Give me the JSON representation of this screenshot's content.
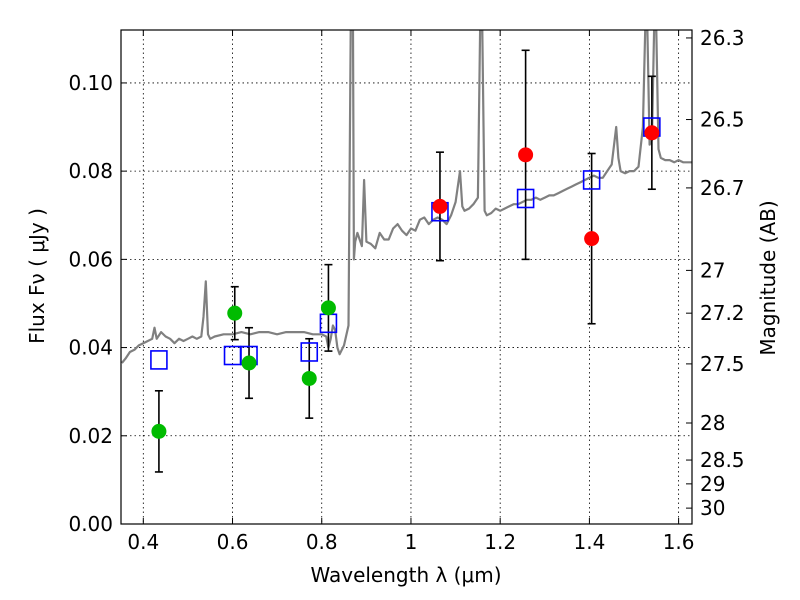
{
  "chart_data": {
    "type": "scatter",
    "xlabel": "Wavelength  λ (μm)",
    "ylabel": "Flux  Fν  ( μJy )",
    "ylabel_right": "Magnitude (AB)",
    "xlim": [
      0.35,
      1.63
    ],
    "ylim": [
      0.0,
      0.112
    ],
    "grid": true,
    "x_ticks": [
      {
        "value": 0.4,
        "label": "0.4"
      },
      {
        "value": 0.6,
        "label": "0.6"
      },
      {
        "value": 0.8,
        "label": "0.8"
      },
      {
        "value": 1.0,
        "label": "1"
      },
      {
        "value": 1.2,
        "label": "1.2"
      },
      {
        "value": 1.4,
        "label": "1.4"
      },
      {
        "value": 1.6,
        "label": "1.6"
      }
    ],
    "y_ticks": [
      {
        "value": 0.0,
        "label": "0.00"
      },
      {
        "value": 0.02,
        "label": "0.02"
      },
      {
        "value": 0.04,
        "label": "0.04"
      },
      {
        "value": 0.06,
        "label": "0.06"
      },
      {
        "value": 0.08,
        "label": "0.08"
      },
      {
        "value": 0.1,
        "label": "0.10"
      }
    ],
    "y_right_ticks": [
      {
        "flux": 0.1102,
        "label": "26.3"
      },
      {
        "flux": 0.0917,
        "label": "26.5"
      },
      {
        "flux": 0.0762,
        "label": "26.7"
      },
      {
        "flux": 0.0575,
        "label": "27"
      },
      {
        "flux": 0.0478,
        "label": "27.2"
      },
      {
        "flux": 0.0363,
        "label": "27.5"
      },
      {
        "flux": 0.0229,
        "label": "28"
      },
      {
        "flux": 0.0145,
        "label": "28.5"
      },
      {
        "flux": 0.0091,
        "label": "29"
      },
      {
        "flux": 0.0036,
        "label": "30"
      }
    ],
    "series": [
      {
        "name": "model_spectrum",
        "kind": "line",
        "color": "#808080",
        "points": [
          [
            0.352,
            0.0365
          ],
          [
            0.36,
            0.0375
          ],
          [
            0.37,
            0.039
          ],
          [
            0.38,
            0.0395
          ],
          [
            0.39,
            0.0405
          ],
          [
            0.4,
            0.041
          ],
          [
            0.41,
            0.0415
          ],
          [
            0.42,
            0.042
          ],
          [
            0.425,
            0.0445
          ],
          [
            0.43,
            0.042
          ],
          [
            0.44,
            0.0435
          ],
          [
            0.45,
            0.0425
          ],
          [
            0.46,
            0.042
          ],
          [
            0.47,
            0.041
          ],
          [
            0.48,
            0.042
          ],
          [
            0.49,
            0.0415
          ],
          [
            0.5,
            0.042
          ],
          [
            0.51,
            0.0425
          ],
          [
            0.52,
            0.042
          ],
          [
            0.53,
            0.0425
          ],
          [
            0.535,
            0.047
          ],
          [
            0.54,
            0.055
          ],
          [
            0.545,
            0.043
          ],
          [
            0.55,
            0.042
          ],
          [
            0.56,
            0.0425
          ],
          [
            0.58,
            0.043
          ],
          [
            0.6,
            0.043
          ],
          [
            0.62,
            0.0435
          ],
          [
            0.64,
            0.043
          ],
          [
            0.66,
            0.0435
          ],
          [
            0.68,
            0.0435
          ],
          [
            0.7,
            0.043
          ],
          [
            0.72,
            0.0435
          ],
          [
            0.74,
            0.0435
          ],
          [
            0.76,
            0.0435
          ],
          [
            0.78,
            0.043
          ],
          [
            0.8,
            0.043
          ],
          [
            0.81,
            0.0425
          ],
          [
            0.815,
            0.04
          ],
          [
            0.82,
            0.042
          ],
          [
            0.825,
            0.045
          ],
          [
            0.83,
            0.044
          ],
          [
            0.835,
            0.04
          ],
          [
            0.84,
            0.0385
          ],
          [
            0.85,
            0.0405
          ],
          [
            0.86,
            0.045
          ],
          [
            0.865,
            0.112
          ],
          [
            0.87,
            0.112
          ],
          [
            0.872,
            0.06
          ],
          [
            0.875,
            0.064
          ],
          [
            0.88,
            0.066
          ],
          [
            0.89,
            0.063
          ],
          [
            0.895,
            0.078
          ],
          [
            0.9,
            0.064
          ],
          [
            0.91,
            0.0635
          ],
          [
            0.92,
            0.0625
          ],
          [
            0.93,
            0.066
          ],
          [
            0.94,
            0.0645
          ],
          [
            0.95,
            0.0645
          ],
          [
            0.96,
            0.067
          ],
          [
            0.97,
            0.068
          ],
          [
            0.98,
            0.0665
          ],
          [
            0.99,
            0.0655
          ],
          [
            1.0,
            0.067
          ],
          [
            1.01,
            0.0665
          ],
          [
            1.02,
            0.069
          ],
          [
            1.03,
            0.0695
          ],
          [
            1.04,
            0.068
          ],
          [
            1.05,
            0.069
          ],
          [
            1.06,
            0.0695
          ],
          [
            1.07,
            0.069
          ],
          [
            1.08,
            0.068
          ],
          [
            1.09,
            0.07
          ],
          [
            1.1,
            0.073
          ],
          [
            1.11,
            0.08
          ],
          [
            1.115,
            0.072
          ],
          [
            1.12,
            0.071
          ],
          [
            1.13,
            0.0715
          ],
          [
            1.14,
            0.0725
          ],
          [
            1.15,
            0.074
          ],
          [
            1.155,
            0.112
          ],
          [
            1.16,
            0.112
          ],
          [
            1.165,
            0.071
          ],
          [
            1.17,
            0.07
          ],
          [
            1.18,
            0.0705
          ],
          [
            1.19,
            0.0715
          ],
          [
            1.2,
            0.071
          ],
          [
            1.21,
            0.0715
          ],
          [
            1.22,
            0.072
          ],
          [
            1.23,
            0.0725
          ],
          [
            1.24,
            0.0725
          ],
          [
            1.25,
            0.073
          ],
          [
            1.26,
            0.0735
          ],
          [
            1.27,
            0.0735
          ],
          [
            1.28,
            0.074
          ],
          [
            1.29,
            0.0735
          ],
          [
            1.3,
            0.074
          ],
          [
            1.31,
            0.0745
          ],
          [
            1.32,
            0.0745
          ],
          [
            1.33,
            0.075
          ],
          [
            1.34,
            0.0755
          ],
          [
            1.35,
            0.076
          ],
          [
            1.36,
            0.0765
          ],
          [
            1.37,
            0.077
          ],
          [
            1.38,
            0.0775
          ],
          [
            1.39,
            0.078
          ],
          [
            1.4,
            0.0785
          ],
          [
            1.41,
            0.079
          ],
          [
            1.42,
            0.0785
          ],
          [
            1.43,
            0.0785
          ],
          [
            1.44,
            0.08
          ],
          [
            1.45,
            0.0815
          ],
          [
            1.46,
            0.09
          ],
          [
            1.465,
            0.083
          ],
          [
            1.47,
            0.08
          ],
          [
            1.48,
            0.0795
          ],
          [
            1.49,
            0.08
          ],
          [
            1.5,
            0.08
          ],
          [
            1.51,
            0.081
          ],
          [
            1.52,
            0.09
          ],
          [
            1.525,
            0.112
          ],
          [
            1.53,
            0.112
          ],
          [
            1.535,
            0.086
          ],
          [
            1.54,
            0.087
          ],
          [
            1.545,
            0.112
          ],
          [
            1.55,
            0.112
          ],
          [
            1.555,
            0.085
          ],
          [
            1.56,
            0.083
          ],
          [
            1.57,
            0.0825
          ],
          [
            1.58,
            0.0825
          ],
          [
            1.59,
            0.082
          ],
          [
            1.6,
            0.0825
          ],
          [
            1.61,
            0.082
          ],
          [
            1.62,
            0.082
          ],
          [
            1.63,
            0.082
          ]
        ]
      },
      {
        "name": "model_synthetic_photometry",
        "kind": "open-square",
        "color": "#0000ff",
        "points": [
          [
            0.435,
            0.0372
          ],
          [
            0.6,
            0.0382
          ],
          [
            0.637,
            0.0382
          ],
          [
            0.772,
            0.039
          ],
          [
            0.815,
            0.0455
          ],
          [
            1.065,
            0.0708
          ],
          [
            1.257,
            0.0738
          ],
          [
            1.405,
            0.078
          ],
          [
            1.54,
            0.09
          ]
        ]
      },
      {
        "name": "optical_observations",
        "kind": "filled-circle",
        "color": "#00bb00",
        "points": [
          {
            "x": 0.435,
            "y": 0.021,
            "err": 0.0092
          },
          {
            "x": 0.605,
            "y": 0.0478,
            "err": 0.006
          },
          {
            "x": 0.637,
            "y": 0.0365,
            "err": 0.008
          },
          {
            "x": 0.772,
            "y": 0.033,
            "err": 0.009
          },
          {
            "x": 0.815,
            "y": 0.049,
            "err": 0.0098
          }
        ]
      },
      {
        "name": "near_ir_observations",
        "kind": "filled-circle",
        "color": "#ff0000",
        "points": [
          {
            "x": 1.065,
            "y": 0.072,
            "err": 0.0123
          },
          {
            "x": 1.257,
            "y": 0.0837,
            "err": 0.0237
          },
          {
            "x": 1.405,
            "y": 0.0647,
            "err": 0.0193
          },
          {
            "x": 1.54,
            "y": 0.0887,
            "err": 0.0128
          }
        ]
      }
    ]
  }
}
